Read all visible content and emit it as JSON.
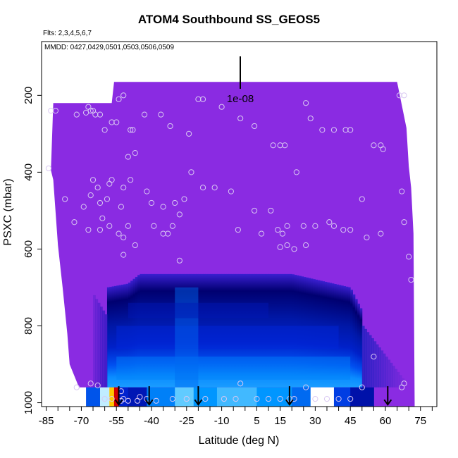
{
  "chart_data": {
    "type": "heatmap",
    "title": "ATOM4 Southbound SS_GEOS5",
    "flights_label": "Flts: 2,3,4,5,6,7",
    "dates_label": "MMDD: 0427,0429,0501,0503,0506,0509",
    "xlabel": "Latitude (deg N)",
    "ylabel": "PSXC (mbar)",
    "xlim": [
      -87,
      82
    ],
    "ylim": [
      1010,
      60
    ],
    "x_ticks": [
      -85,
      -70,
      -55,
      -40,
      -25,
      -10,
      5,
      15,
      30,
      45,
      60,
      75
    ],
    "x_tick_labels": [
      "-85",
      "-70",
      "-55",
      "-40",
      "-25",
      "-10",
      "5",
      "15",
      "30",
      "45",
      "60",
      "75"
    ],
    "x_minor_step": 5,
    "y_ticks": [
      200,
      400,
      600,
      800,
      1000
    ],
    "y_tick_labels": [
      "200",
      "400",
      "600",
      "800",
      "1000"
    ],
    "scale_bar_label": "1e-08",
    "background_color": "#8a2be2",
    "colors": {
      "background_field": "#8a2be2",
      "low": "#000090",
      "mid": "#0060ff",
      "high": "#40c8ff",
      "peak": "#ffffff",
      "max": "#d00000",
      "marker_stroke": "#d9c8f2",
      "arrow": "#000000"
    },
    "top_boundary": [
      [
        -82,
        220
      ],
      [
        -63,
        220
      ],
      [
        -57,
        220
      ],
      [
        -56,
        165
      ],
      [
        65,
        165
      ],
      [
        67,
        225
      ],
      [
        69,
        285
      ],
      [
        70,
        385
      ],
      [
        71,
        440
      ],
      [
        72,
        560
      ],
      [
        72.5,
        1000
      ]
    ],
    "bottom_boundary": [
      [
        -83,
        395
      ],
      [
        -82,
        420
      ],
      [
        -80,
        590
      ],
      [
        -78,
        700
      ],
      [
        -76,
        820
      ],
      [
        -75,
        900
      ],
      [
        -71,
        960
      ],
      [
        -71,
        1000
      ]
    ],
    "dark_band": {
      "lat_range": [
        -59,
        50
      ],
      "top_pressure": [
        [
          -59,
          700
        ],
        [
          -50,
          690
        ],
        [
          -45,
          665
        ],
        [
          20,
          665
        ],
        [
          45,
          700
        ],
        [
          50,
          760
        ]
      ],
      "bottom_pressure": 960
    },
    "surface_layer": {
      "pressure_range": [
        960,
        1000
      ],
      "segments": [
        {
          "lat_range": [
            -68,
            -62
          ],
          "level": 0.45
        },
        {
          "lat_range": [
            -62,
            -58
          ],
          "level": 0.85
        },
        {
          "lat_range": [
            -58,
            -56
          ],
          "level": 0.95
        },
        {
          "lat_range": [
            -56,
            -54
          ],
          "level": 1.0
        },
        {
          "lat_range": [
            -54,
            -50
          ],
          "level": 0.3
        },
        {
          "lat_range": [
            -50,
            -42
          ],
          "level": 0.2
        },
        {
          "lat_range": [
            -42,
            -30
          ],
          "level": 0.55
        },
        {
          "lat_range": [
            -30,
            -22
          ],
          "level": 0.75
        },
        {
          "lat_range": [
            -22,
            -12
          ],
          "level": 0.6
        },
        {
          "lat_range": [
            -12,
            5
          ],
          "level": 0.7
        },
        {
          "lat_range": [
            5,
            20
          ],
          "level": 0.6
        },
        {
          "lat_range": [
            20,
            28
          ],
          "level": 0.5
        },
        {
          "lat_range": [
            28,
            38
          ],
          "level": 0.9
        },
        {
          "lat_range": [
            38,
            45
          ],
          "level": 0.4
        },
        {
          "lat_range": [
            45,
            55
          ],
          "level": 0.15
        }
      ]
    },
    "streaks": [
      {
        "lat_range": [
          -55,
          40
        ],
        "pressure_range": [
          800,
          860
        ],
        "level": 0.35
      },
      {
        "lat_range": [
          -55,
          45
        ],
        "pressure_range": [
          880,
          940
        ],
        "level": 0.55
      },
      {
        "lat_range": [
          -30,
          -20
        ],
        "pressure_range": [
          700,
          960
        ],
        "level": 0.5
      },
      {
        "lat_range": [
          -50,
          10
        ],
        "pressure_range": [
          740,
          780
        ],
        "level": 0.2
      }
    ],
    "markers": [
      [
        -83,
        240
      ],
      [
        -81,
        240
      ],
      [
        -72,
        250
      ],
      [
        -68,
        245
      ],
      [
        -67,
        230
      ],
      [
        -66,
        240
      ],
      [
        -65,
        240
      ],
      [
        -64,
        250
      ],
      [
        -62,
        250
      ],
      [
        -60,
        290
      ],
      [
        -57,
        270
      ],
      [
        -55,
        270
      ],
      [
        -54,
        210
      ],
      [
        -52,
        200
      ],
      [
        -49,
        290
      ],
      [
        -48,
        290
      ],
      [
        -43,
        250
      ],
      [
        -36,
        250
      ],
      [
        -32,
        280
      ],
      [
        -24,
        300
      ],
      [
        -20,
        210
      ],
      [
        -18,
        210
      ],
      [
        -10,
        230
      ],
      [
        -2,
        260
      ],
      [
        4,
        280
      ],
      [
        12,
        330
      ],
      [
        15,
        330
      ],
      [
        17,
        330
      ],
      [
        26,
        220
      ],
      [
        28,
        260
      ],
      [
        33,
        290
      ],
      [
        38,
        290
      ],
      [
        43,
        290
      ],
      [
        45,
        290
      ],
      [
        55,
        330
      ],
      [
        58,
        330
      ],
      [
        59,
        340
      ],
      [
        66,
        200
      ],
      [
        68,
        200
      ],
      [
        -84,
        390
      ],
      [
        -77,
        470
      ],
      [
        -73,
        530
      ],
      [
        -69,
        490
      ],
      [
        -66,
        460
      ],
      [
        -65,
        420
      ],
      [
        -63,
        440
      ],
      [
        -62,
        480
      ],
      [
        -61,
        520
      ],
      [
        -59,
        470
      ],
      [
        -58,
        430
      ],
      [
        -57,
        420
      ],
      [
        -53,
        490
      ],
      [
        -52,
        440
      ],
      [
        -50,
        360
      ],
      [
        -49,
        420
      ],
      [
        -47,
        350
      ],
      [
        -42,
        450
      ],
      [
        -40,
        480
      ],
      [
        -35,
        490
      ],
      [
        -30,
        480
      ],
      [
        -28,
        510
      ],
      [
        -26,
        470
      ],
      [
        -23,
        400
      ],
      [
        -18,
        440
      ],
      [
        -13,
        440
      ],
      [
        -6,
        450
      ],
      [
        -3,
        550
      ],
      [
        4,
        500
      ],
      [
        7,
        560
      ],
      [
        11,
        500
      ],
      [
        14,
        550
      ],
      [
        16,
        560
      ],
      [
        18,
        540
      ],
      [
        22,
        400
      ],
      [
        25,
        540
      ],
      [
        26,
        590
      ],
      [
        30,
        540
      ],
      [
        36,
        530
      ],
      [
        38,
        540
      ],
      [
        42,
        550
      ],
      [
        45,
        550
      ],
      [
        50,
        470
      ],
      [
        52,
        570
      ],
      [
        58,
        560
      ],
      [
        -67,
        550
      ],
      [
        -62,
        550
      ],
      [
        -58,
        540
      ],
      [
        -54,
        560
      ],
      [
        -52,
        570
      ],
      [
        -50,
        540
      ],
      [
        -47,
        590
      ],
      [
        -39,
        540
      ],
      [
        -35,
        560
      ],
      [
        -33,
        560
      ],
      [
        -31,
        540
      ],
      [
        -28,
        630
      ],
      [
        -52,
        615
      ],
      [
        15,
        595
      ],
      [
        21,
        600
      ],
      [
        18,
        590
      ],
      [
        67,
        450
      ],
      [
        68,
        530
      ],
      [
        70,
        620
      ],
      [
        71,
        680
      ],
      [
        68,
        950
      ],
      [
        67,
        960
      ],
      [
        -72,
        960
      ],
      [
        -66,
        950
      ],
      [
        -63,
        955
      ],
      [
        -60,
        990
      ],
      [
        -57,
        990
      ],
      [
        -53,
        970
      ],
      [
        -52,
        990
      ],
      [
        -50,
        995
      ],
      [
        -46,
        995
      ],
      [
        -42,
        990
      ],
      [
        -38,
        995
      ],
      [
        -31,
        990
      ],
      [
        -25,
        990
      ],
      [
        -17,
        990
      ],
      [
        -9,
        990
      ],
      [
        -4,
        990
      ],
      [
        -2,
        950
      ],
      [
        5,
        990
      ],
      [
        10,
        990
      ],
      [
        15,
        990
      ],
      [
        19,
        990
      ],
      [
        26,
        960
      ],
      [
        30,
        990
      ],
      [
        35,
        990
      ],
      [
        40,
        990
      ],
      [
        45,
        990
      ],
      [
        50,
        960
      ],
      [
        55,
        880
      ],
      [
        -53,
        995
      ],
      [
        -45,
        985
      ],
      [
        21,
        990
      ]
    ],
    "arrows": [
      -54,
      -41,
      -20,
      19,
      61
    ]
  }
}
